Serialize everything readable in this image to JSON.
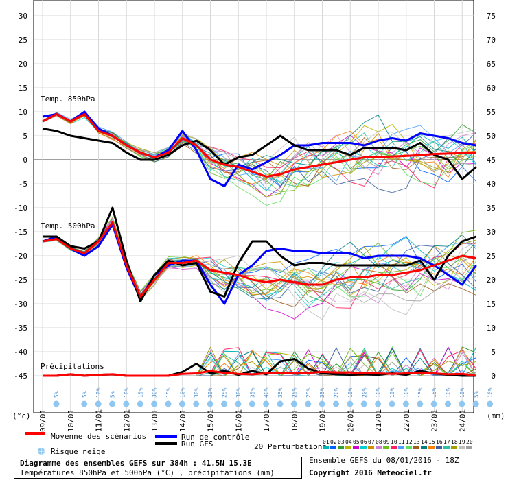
{
  "labels": {
    "t850": "Temp. 850hPa",
    "t500": "Temp. 500hPa",
    "precip": "Précipitations",
    "unit_left": "(°c)",
    "unit_right": "(mm)"
  },
  "legend": {
    "mean": "Moyenne des scénarios",
    "control": "Run de contrôle",
    "gfs": "Run GFS",
    "snow": "Risque neige",
    "perturbations": "20 Perturbations",
    "pert_numbers": [
      "01",
      "02",
      "03",
      "04",
      "05",
      "06",
      "07",
      "08",
      "09",
      "10",
      "11",
      "12",
      "13",
      "14",
      "15",
      "16",
      "17",
      "18",
      "19",
      "20"
    ],
    "pert_colors": [
      "#00b8b8",
      "#0060ff",
      "#30a030",
      "#b8b800",
      "#d000d0",
      "#00d0d0",
      "#d09000",
      "#d080d0",
      "#70c020",
      "#ff2060",
      "#50a0ff",
      "#60e060",
      "#a06020",
      "#008080",
      "#ff8000",
      "#4060a0",
      "#30c0a0",
      "#a0a000",
      "#c0c0c0",
      "#a0a0a0"
    ]
  },
  "footer": {
    "title": "Diagramme des ensembles GEFS sur 384h : 41.5N 15.3E",
    "subtitle": "Températures 850hPa et 500hPa (°C) , précipitations (mm)",
    "run_info": "Ensemble GEFS du 08/01/2016 - 18Z",
    "copyright": "Copyright 2016 Meteociel.fr"
  },
  "chart_data": {
    "type": "line",
    "x_labels": [
      "09/01",
      "10/01",
      "11/01",
      "12/01",
      "13/01",
      "14/01",
      "15/01",
      "16/01",
      "17/01",
      "18/01",
      "19/01",
      "20/01",
      "21/01",
      "22/01",
      "23/01",
      "24/01"
    ],
    "y_left": {
      "ticks": [
        30,
        25,
        20,
        15,
        10,
        5,
        0,
        -5,
        -10,
        -15,
        -20,
        -25,
        -30,
        -35,
        -40,
        -45
      ],
      "range": [
        -45,
        30
      ]
    },
    "y_right": {
      "ticks": [
        75,
        70,
        65,
        60,
        55,
        50,
        45,
        40,
        35,
        30,
        25,
        20,
        15,
        10,
        5,
        0
      ],
      "range": [
        0,
        75
      ]
    },
    "x_days": [
      0,
      0.5,
      1,
      1.5,
      2,
      2.5,
      3,
      3.5,
      4,
      4.5,
      5,
      5.5,
      6,
      6.5,
      7,
      7.5,
      8,
      8.5,
      9,
      9.5,
      10,
      10.5,
      11,
      11.5,
      12,
      12.5,
      13,
      13.5,
      14,
      14.5,
      15,
      15.5
    ],
    "series": [
      {
        "name": "Moyenne des scénarios",
        "group": "t850",
        "color": "#ff0000",
        "values": [
          8,
          9.5,
          8,
          9.5,
          6,
          5,
          3,
          1.5,
          0.5,
          1.5,
          4.5,
          3,
          0,
          -1,
          -1.5,
          -2.5,
          -3.5,
          -3,
          -2,
          -1.5,
          -1,
          -0.5,
          0,
          0.5,
          0.5,
          0.7,
          0.8,
          1,
          1.2,
          1.3,
          1.4,
          1.5
        ]
      },
      {
        "name": "Run de contrôle",
        "group": "t850",
        "color": "#0000ff",
        "values": [
          9,
          9.5,
          8,
          10,
          6.5,
          5,
          3,
          1.5,
          0.5,
          2,
          6,
          2,
          -4,
          -5.5,
          -1,
          -2,
          -0.5,
          1,
          3,
          3,
          3.5,
          3.5,
          3.5,
          3,
          4,
          4.5,
          4,
          5.5,
          5,
          4.5,
          3.5,
          3
        ]
      },
      {
        "name": "Run GFS",
        "group": "t850",
        "color": "#000000",
        "values": [
          6.5,
          6,
          5,
          4.5,
          4,
          3.5,
          1.5,
          0,
          0,
          1,
          3,
          4,
          2,
          -1,
          0.5,
          1,
          3,
          5,
          3,
          2,
          2,
          2,
          1,
          2.5,
          2.5,
          2.5,
          2,
          3.5,
          1,
          0,
          -4,
          -1.5
        ]
      },
      {
        "name": "Moyenne des scénarios",
        "group": "t500",
        "color": "#ff0000",
        "values": [
          -17,
          -16.5,
          -18.5,
          -19.5,
          -17,
          -13,
          -22,
          -28.5,
          -25,
          -21.5,
          -21.5,
          -21,
          -23,
          -23.5,
          -24,
          -25,
          -25.5,
          -25,
          -25.5,
          -26,
          -26,
          -25,
          -24.5,
          -24.5,
          -24,
          -24,
          -23.5,
          -23,
          -22,
          -21,
          -20,
          -20.5
        ]
      },
      {
        "name": "Run de contrôle",
        "group": "t500",
        "color": "#0000ff",
        "values": [
          -17,
          -16,
          -18.5,
          -20,
          -18,
          -13.5,
          -22.5,
          -29,
          -24,
          -22,
          -21,
          -21,
          -26,
          -30,
          -24,
          -22,
          -19,
          -18.5,
          -19,
          -19,
          -19.5,
          -19.5,
          -19.5,
          -20.5,
          -20,
          -20,
          -20,
          -20.5,
          -22,
          -24,
          -26,
          -22
        ]
      },
      {
        "name": "Run GFS",
        "group": "t500",
        "color": "#000000",
        "values": [
          -16,
          -16,
          -18,
          -18.5,
          -17,
          -10,
          -21,
          -29.5,
          -24,
          -21,
          -22,
          -21.5,
          -27.5,
          -28.5,
          -21.5,
          -17,
          -17,
          -20,
          -22,
          -21.5,
          -21.5,
          -22,
          -22,
          -22,
          -22,
          -22,
          -22,
          -21,
          -25,
          -20,
          -17,
          -16
        ]
      },
      {
        "name": "Moyenne des scénarios",
        "group": "precip",
        "color": "#ff0000",
        "values": [
          0,
          0,
          0.3,
          0,
          0.2,
          0.3,
          0,
          0,
          0,
          0,
          0.4,
          0.5,
          1,
          0.6,
          0.4,
          0.3,
          0.5,
          0.6,
          0.5,
          0.6,
          0.8,
          0.7,
          0.7,
          0.5,
          0.5,
          0.4,
          0.5,
          0.5,
          0.5,
          0.3,
          0.4,
          0
        ]
      },
      {
        "name": "Run GFS",
        "group": "precip",
        "color": "#000000",
        "values": [
          0,
          0,
          0.3,
          0,
          0.2,
          0.3,
          0,
          0,
          0,
          0,
          0.8,
          2.5,
          0.5,
          1,
          0.2,
          1,
          0.3,
          3,
          3.5,
          1.5,
          0.5,
          0.3,
          0.2,
          0.3,
          0.2,
          0.5,
          0.2,
          1,
          0.5,
          0.2,
          0,
          0
        ]
      }
    ],
    "snow_risk": [
      "5%",
      "",
      "5%",
      "10%",
      "5%",
      "10%",
      "15%",
      "30%",
      "15%",
      "10%",
      "30%",
      "30%",
      "25%",
      "30%",
      "35%",
      "40%",
      "35%",
      "25%",
      "25%",
      "35%",
      "20%",
      "10%",
      "20%",
      "10%",
      "10%",
      "10%",
      "15%",
      "15%",
      "10%",
      "10%",
      "5%",
      "10%"
    ]
  }
}
